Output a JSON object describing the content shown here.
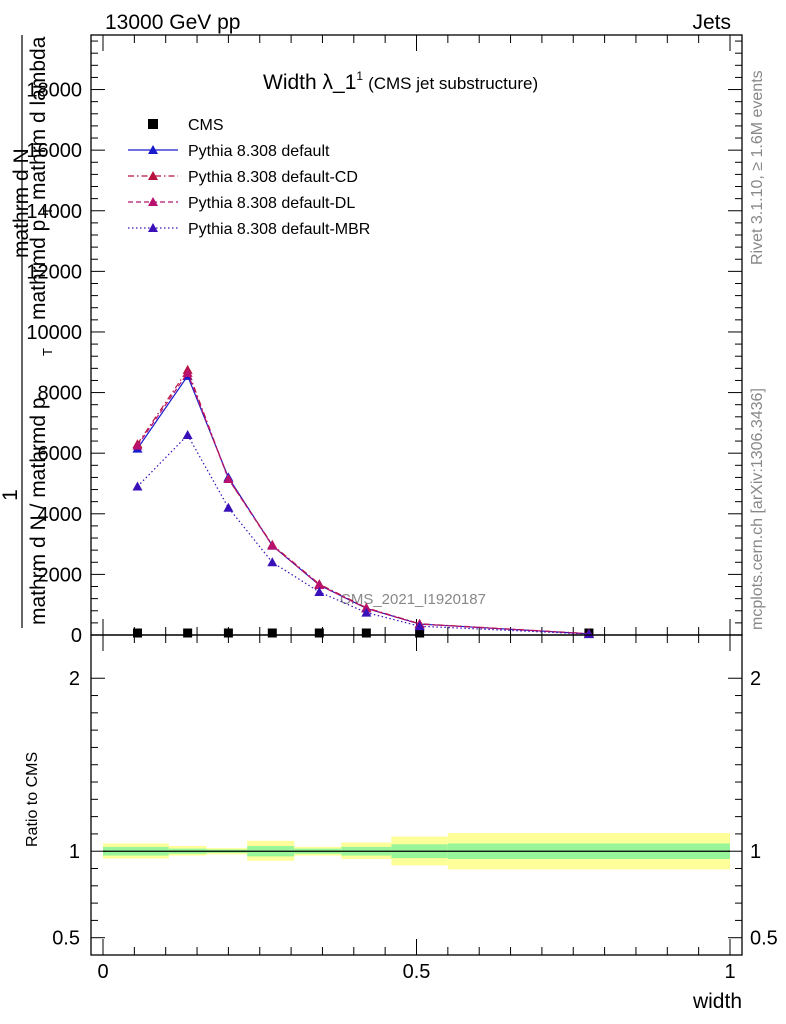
{
  "header": {
    "energy_label": "13000 GeV pp",
    "process_label": "Jets"
  },
  "side_labels": {
    "rivet": "Rivet 3.1.10, ≥ 1.6M events",
    "mcplots": "mcplots.cern.ch [arXiv:1306.3436]"
  },
  "chart_data": [
    {
      "type": "line",
      "title": "Width λ_1",
      "title_sup": "1",
      "subtitle": "(CMS jet substructure)",
      "watermark": "CMS_2021_I1920187",
      "xlabel": "width",
      "ylabel_parts": [
        "1",
        "mathrm d N / mathrmd p",
        "T",
        "mathrm d N",
        "mathrmd p",
        "T",
        "mathrm d lambda"
      ],
      "xlim": [
        0,
        1
      ],
      "ylim": [
        0,
        19800
      ],
      "yticks": [
        0,
        2000,
        4000,
        6000,
        8000,
        10000,
        12000,
        14000,
        16000,
        18000
      ],
      "ytick_labels": [
        "0",
        "2000",
        "4000",
        "6000",
        "8000",
        "10000",
        "12000",
        "14000",
        "16000",
        "18000"
      ],
      "x": [
        0.055,
        0.135,
        0.2,
        0.27,
        0.345,
        0.42,
        0.505,
        0.775
      ],
      "series": [
        {
          "name": "CMS",
          "marker": "square",
          "color": "#000000",
          "values": [
            15,
            20,
            15,
            10,
            8,
            5,
            3,
            0
          ]
        },
        {
          "name": "Pythia 8.308 default",
          "marker": "triangle",
          "line": "solid",
          "color": "#1a1acd",
          "values": [
            6150,
            8550,
            5200,
            2950,
            1650,
            880,
            360,
            40
          ]
        },
        {
          "name": "Pythia 8.308 default-CD",
          "marker": "triangle",
          "line": "dashdot",
          "color": "#b8123e",
          "values": [
            6300,
            8750,
            5150,
            2980,
            1680,
            900,
            370,
            45
          ]
        },
        {
          "name": "Pythia 8.308 default-DL",
          "marker": "triangle",
          "line": "dashed",
          "color": "#b8126e",
          "values": [
            6250,
            8650,
            5150,
            2950,
            1650,
            880,
            360,
            40
          ]
        },
        {
          "name": "Pythia 8.308 default-MBR",
          "marker": "triangle",
          "line": "dotted",
          "color": "#3a10b8",
          "values": [
            4900,
            6600,
            4200,
            2400,
            1420,
            740,
            290,
            30
          ]
        }
      ],
      "legend_position": "top-left"
    },
    {
      "type": "area",
      "ylabel": "Ratio to CMS",
      "xlabel": "width",
      "xlim": [
        0,
        1
      ],
      "ylim": [
        0.4,
        2.25
      ],
      "yticks": [
        0.5,
        1,
        2
      ],
      "ytick_labels": [
        "0.5",
        "1",
        "2"
      ],
      "xticks": [
        0,
        0.5,
        1
      ],
      "xtick_labels": [
        "0",
        "0.5",
        "1"
      ],
      "bins": [
        [
          0,
          0.105
        ],
        [
          0.105,
          0.165
        ],
        [
          0.165,
          0.23
        ],
        [
          0.23,
          0.305
        ],
        [
          0.305,
          0.38
        ],
        [
          0.38,
          0.46
        ],
        [
          0.46,
          0.55
        ],
        [
          0.55,
          1.0
        ]
      ],
      "band_outer": [
        [
          0.958,
          1.045
        ],
        [
          0.975,
          1.03
        ],
        [
          0.982,
          1.018
        ],
        [
          0.945,
          1.06
        ],
        [
          0.975,
          1.025
        ],
        [
          0.955,
          1.05
        ],
        [
          0.918,
          1.085
        ],
        [
          0.895,
          1.105
        ]
      ],
      "band_inner": [
        [
          0.975,
          1.025
        ],
        [
          0.985,
          1.015
        ],
        [
          0.99,
          1.01
        ],
        [
          0.97,
          1.03
        ],
        [
          0.985,
          1.015
        ],
        [
          0.975,
          1.025
        ],
        [
          0.96,
          1.04
        ],
        [
          0.955,
          1.045
        ]
      ],
      "colors": {
        "outer": "#ffff99",
        "inner": "#99f599",
        "reference": "#000000"
      }
    }
  ]
}
